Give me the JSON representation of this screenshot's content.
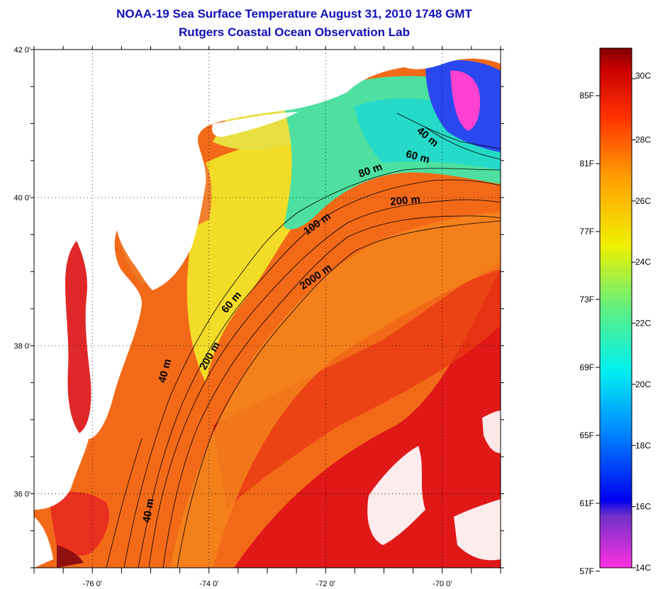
{
  "title_line1": "NOAA-19 Sea Surface Temperature August 31, 2010 1748 GMT",
  "title_line2": "Rutgers Coastal Ocean Observation Lab",
  "map": {
    "lat_ticks": [
      {
        "value": 42,
        "label": "42 0'"
      },
      {
        "value": 40,
        "label": "40 0'"
      },
      {
        "value": 38,
        "label": "38 0'"
      },
      {
        "value": 36,
        "label": "36 0'"
      }
    ],
    "lon_ticks": [
      {
        "value": -76,
        "label": "-76 0'"
      },
      {
        "value": -74,
        "label": "-74 0'"
      },
      {
        "value": -72,
        "label": "-72 0'"
      },
      {
        "value": -70,
        "label": "-70 0'"
      }
    ],
    "lon_range": [
      -77.0,
      -69.0
    ],
    "lat_range": [
      35.0,
      42.0
    ],
    "contour_labels": [
      "40 m",
      "60 m",
      "80 m",
      "200 m",
      "100 m",
      "2000 m",
      "60 m",
      "200 m",
      "40 m",
      "40 m"
    ],
    "land_color": "#ffffff",
    "ocean_colors": {
      "gulf_stream": "#e01010",
      "shelf_warm": "#f07818",
      "new_jersey_shelf": "#f4e020",
      "southern_new_england": "#40e0a0",
      "cape_cod_cold": "#2040ff",
      "cold_pool": "#ff40d0"
    }
  },
  "colorbar": {
    "fahrenheit_labels": [
      "85F",
      "81F",
      "77F",
      "73F",
      "69F",
      "65F",
      "61F",
      "57F"
    ],
    "celsius_labels": [
      "30C",
      "28C",
      "26C",
      "24C",
      "22C",
      "20C",
      "18C",
      "16C",
      "14C"
    ],
    "range_c": [
      14,
      31
    ]
  }
}
